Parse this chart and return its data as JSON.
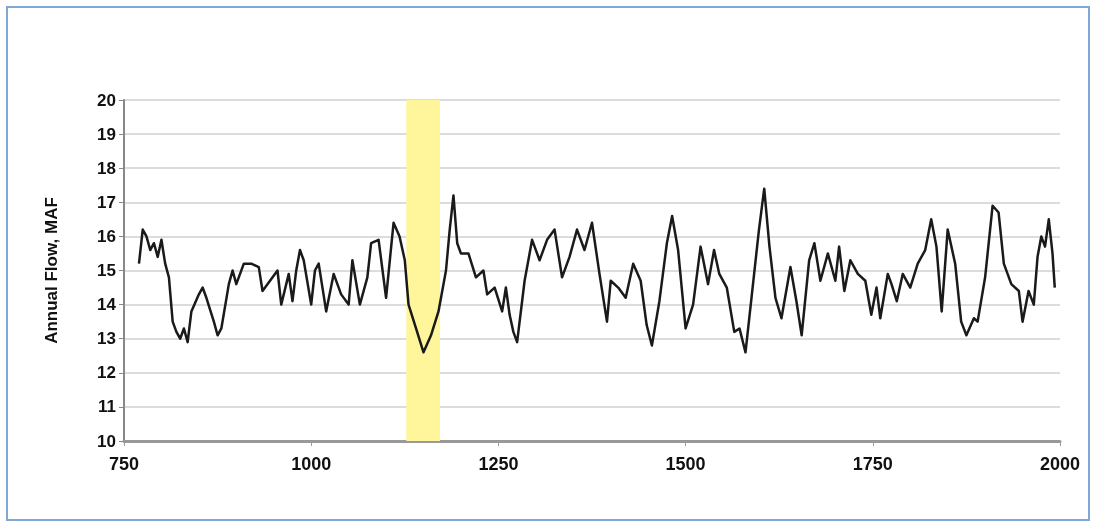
{
  "chart_data": {
    "type": "line",
    "ylabel": "Annual Flow, MAF",
    "xlim": [
      750,
      2000
    ],
    "xticks": [
      750,
      1000,
      1250,
      1500,
      1750,
      2000
    ],
    "ylim": [
      10,
      20
    ],
    "yticks": [
      10,
      11,
      12,
      13,
      14,
      15,
      16,
      17,
      18,
      19,
      20
    ],
    "grid": "y",
    "marker": "none",
    "line_style": "solid",
    "bands": [
      {
        "axis": "x",
        "from": 1127,
        "to": 1172,
        "color": "#fff59a"
      }
    ],
    "series": [
      {
        "color": "#1a1a1a",
        "x": [
          770,
          775,
          780,
          785,
          790,
          795,
          800,
          805,
          810,
          815,
          820,
          825,
          830,
          835,
          840,
          850,
          855,
          860,
          870,
          875,
          880,
          890,
          895,
          900,
          910,
          920,
          930,
          935,
          945,
          955,
          960,
          970,
          975,
          980,
          985,
          990,
          1000,
          1005,
          1010,
          1020,
          1030,
          1040,
          1050,
          1055,
          1065,
          1075,
          1080,
          1090,
          1100,
          1105,
          1110,
          1118,
          1125,
          1130,
          1140,
          1150,
          1160,
          1170,
          1180,
          1185,
          1190,
          1195,
          1200,
          1210,
          1220,
          1230,
          1235,
          1245,
          1255,
          1260,
          1265,
          1270,
          1275,
          1285,
          1295,
          1305,
          1315,
          1325,
          1335,
          1345,
          1355,
          1365,
          1375,
          1385,
          1395,
          1400,
          1410,
          1420,
          1430,
          1440,
          1448,
          1455,
          1465,
          1475,
          1482,
          1490,
          1500,
          1510,
          1520,
          1530,
          1538,
          1545,
          1555,
          1565,
          1572,
          1580,
          1588,
          1598,
          1605,
          1612,
          1620,
          1628,
          1640,
          1648,
          1655,
          1665,
          1672,
          1680,
          1690,
          1700,
          1705,
          1712,
          1720,
          1730,
          1740,
          1748,
          1755,
          1760,
          1770,
          1775,
          1782,
          1790,
          1800,
          1810,
          1820,
          1828,
          1835,
          1842,
          1850,
          1860,
          1868,
          1875,
          1885,
          1890,
          1900,
          1910,
          1918,
          1925,
          1935,
          1945,
          1950,
          1958,
          1965,
          1970,
          1975,
          1980,
          1985,
          1990,
          1993
        ],
        "values": [
          15.2,
          16.2,
          16.0,
          15.6,
          15.8,
          15.4,
          15.9,
          15.2,
          14.8,
          13.5,
          13.2,
          13.0,
          13.3,
          12.9,
          13.8,
          14.3,
          14.5,
          14.2,
          13.5,
          13.1,
          13.3,
          14.6,
          15.0,
          14.6,
          15.2,
          15.2,
          15.1,
          14.4,
          14.7,
          15.0,
          14.0,
          14.9,
          14.1,
          15.0,
          15.6,
          15.3,
          14.0,
          15.0,
          15.2,
          13.8,
          14.9,
          14.3,
          14.0,
          15.3,
          14.0,
          14.8,
          15.8,
          15.9,
          14.2,
          15.3,
          16.4,
          16.0,
          15.3,
          14.0,
          13.3,
          12.6,
          13.1,
          13.8,
          15.0,
          16.2,
          17.2,
          15.8,
          15.5,
          15.5,
          14.8,
          15.0,
          14.3,
          14.5,
          13.8,
          14.5,
          13.7,
          13.2,
          12.9,
          14.7,
          15.9,
          15.3,
          15.9,
          16.2,
          14.8,
          15.4,
          16.2,
          15.6,
          16.4,
          14.9,
          13.5,
          14.7,
          14.5,
          14.2,
          15.2,
          14.7,
          13.4,
          12.8,
          14.1,
          15.8,
          16.6,
          15.6,
          13.3,
          14.0,
          15.7,
          14.6,
          15.6,
          14.9,
          14.5,
          13.2,
          13.3,
          12.6,
          14.2,
          16.2,
          17.4,
          15.7,
          14.2,
          13.6,
          15.1,
          14.1,
          13.1,
          15.3,
          15.8,
          14.7,
          15.5,
          14.7,
          15.7,
          14.4,
          15.3,
          14.9,
          14.7,
          13.7,
          14.5,
          13.6,
          14.9,
          14.6,
          14.1,
          14.9,
          14.5,
          15.2,
          15.6,
          16.5,
          15.7,
          13.8,
          16.2,
          15.2,
          13.5,
          13.1,
          13.6,
          13.5,
          14.8,
          16.9,
          16.7,
          15.2,
          14.6,
          14.4,
          13.5,
          14.4,
          14.0,
          15.4,
          16.0,
          15.7,
          16.5,
          15.5,
          14.5
        ]
      }
    ]
  }
}
